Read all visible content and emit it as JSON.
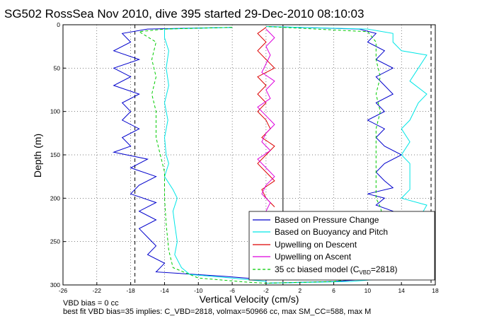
{
  "chart_data": {
    "type": "line",
    "title": "SG502 RossSea Nov 2010, dive 395 started 29-Dec-2010 08:10:03",
    "xlabel": "Vertical Velocity (cm/s)",
    "ylabel": "Depth (m)",
    "xlim": [
      -26,
      18
    ],
    "ylim": [
      0,
      300
    ],
    "y_reversed": true,
    "xticks": [
      "-26",
      "-22",
      "-18",
      "-14",
      "-10",
      "-6",
      "-2",
      "2",
      "6",
      "10",
      "14",
      "18"
    ],
    "xtick_values": [
      -26,
      -22,
      -18,
      -14,
      -10,
      -6,
      -2,
      2,
      6,
      10,
      14,
      18
    ],
    "yticks": [
      "0",
      "50",
      "100",
      "150",
      "200",
      "250",
      "300"
    ],
    "ytick_values": [
      0,
      50,
      100,
      150,
      200,
      250,
      300
    ],
    "grid": "dotted",
    "legend_position": "bottom-right",
    "reference_lines": [
      {
        "x": -17.5,
        "style": "dashed"
      },
      {
        "x": 17.5,
        "style": "dashed"
      },
      {
        "x": 0,
        "style": "solid"
      }
    ],
    "series": [
      {
        "name": "Based on Pressure Change",
        "color": "#0000cc",
        "points": [
          [
            -6,
            3
          ],
          [
            -16,
            5
          ],
          [
            -19,
            10
          ],
          [
            -18,
            20
          ],
          [
            -20,
            30
          ],
          [
            -17,
            40
          ],
          [
            -20,
            50
          ],
          [
            -18,
            60
          ],
          [
            -20,
            70
          ],
          [
            -17,
            80
          ],
          [
            -19,
            90
          ],
          [
            -18,
            100
          ],
          [
            -19,
            110
          ],
          [
            -17,
            120
          ],
          [
            -19,
            130
          ],
          [
            -18,
            140
          ],
          [
            -20,
            147
          ],
          [
            -16,
            155
          ],
          [
            -18,
            165
          ],
          [
            -15,
            175
          ],
          [
            -17,
            185
          ],
          [
            -18,
            195
          ],
          [
            -15,
            205
          ],
          [
            -17,
            215
          ],
          [
            -15,
            225
          ],
          [
            -17,
            235
          ],
          [
            -16,
            245
          ],
          [
            -15,
            255
          ],
          [
            -16,
            265
          ],
          [
            -14,
            275
          ],
          [
            -15,
            285
          ],
          [
            -7,
            290
          ],
          [
            -2,
            294
          ],
          [
            -2,
            298
          ],
          [
            -2,
            298
          ],
          [
            6,
            296
          ],
          [
            12,
            292
          ],
          [
            13,
            285
          ],
          [
            10,
            275
          ],
          [
            12,
            265
          ],
          [
            13,
            255
          ],
          [
            11,
            245
          ],
          [
            12,
            235
          ],
          [
            14,
            225
          ],
          [
            13,
            215
          ],
          [
            11,
            208
          ],
          [
            12,
            200
          ],
          [
            10,
            195
          ],
          [
            13,
            188
          ],
          [
            12,
            180
          ],
          [
            11,
            170
          ],
          [
            12,
            160
          ],
          [
            14,
            150
          ],
          [
            12,
            140
          ],
          [
            11,
            130
          ],
          [
            12,
            120
          ],
          [
            10,
            110
          ],
          [
            12,
            100
          ],
          [
            11,
            90
          ],
          [
            13,
            80
          ],
          [
            12,
            70
          ],
          [
            11,
            60
          ],
          [
            13,
            50
          ],
          [
            11,
            40
          ],
          [
            12,
            30
          ],
          [
            10,
            20
          ],
          [
            11,
            10
          ],
          [
            9,
            5
          ],
          [
            -2,
            2
          ]
        ]
      },
      {
        "name": "Based on Buoyancy and Pitch",
        "color": "#00e6e6",
        "points": [
          [
            -6,
            3
          ],
          [
            -14,
            5
          ],
          [
            -14,
            15
          ],
          [
            -13.5,
            30
          ],
          [
            -13.8,
            50
          ],
          [
            -13.5,
            70
          ],
          [
            -14,
            90
          ],
          [
            -13.6,
            110
          ],
          [
            -14,
            130
          ],
          [
            -13.8,
            150
          ],
          [
            -13.5,
            160
          ],
          [
            -14,
            175
          ],
          [
            -13,
            190
          ],
          [
            -12.5,
            200
          ],
          [
            -13,
            215
          ],
          [
            -12.8,
            230
          ],
          [
            -12.5,
            250
          ],
          [
            -12.8,
            265
          ],
          [
            -12,
            280
          ],
          [
            -11,
            288
          ],
          [
            -6,
            292
          ],
          [
            -2,
            296
          ],
          [
            -2,
            298
          ],
          [
            8,
            296
          ],
          [
            13,
            292
          ],
          [
            14,
            285
          ],
          [
            15,
            270
          ],
          [
            14,
            255
          ],
          [
            15,
            240
          ],
          [
            16,
            225
          ],
          [
            17,
            208
          ],
          [
            14,
            200
          ],
          [
            15,
            190
          ],
          [
            15,
            175
          ],
          [
            15,
            160
          ],
          [
            14,
            150
          ],
          [
            15,
            135
          ],
          [
            14,
            120
          ],
          [
            15,
            110
          ],
          [
            16,
            90
          ],
          [
            17,
            80
          ],
          [
            15,
            65
          ],
          [
            16,
            50
          ],
          [
            17,
            35
          ],
          [
            14,
            30
          ],
          [
            13,
            20
          ],
          [
            13,
            10
          ],
          [
            10,
            5
          ],
          [
            -2,
            2
          ]
        ]
      },
      {
        "name": "Upwelling on Descent",
        "color": "#dd0000",
        "points": [
          [
            -2,
            3
          ],
          [
            -3,
            10
          ],
          [
            -2,
            20
          ],
          [
            -3,
            30
          ],
          [
            -2,
            40
          ],
          [
            -1,
            50
          ],
          [
            -3,
            60
          ],
          [
            -2,
            70
          ],
          [
            -3,
            80
          ],
          [
            -2,
            90
          ],
          [
            -3,
            100
          ],
          [
            -2,
            110
          ],
          [
            -1.5,
            120
          ],
          [
            -2.5,
            130
          ],
          [
            -1,
            140
          ],
          [
            -2,
            150
          ],
          [
            -3,
            160
          ],
          [
            -2,
            170
          ],
          [
            -1,
            180
          ],
          [
            -2.5,
            190
          ],
          [
            -2,
            200
          ],
          [
            -1,
            210
          ]
        ]
      },
      {
        "name": "Upwelling on Ascent",
        "color": "#dd00dd",
        "points": [
          [
            -2,
            215
          ],
          [
            -1.5,
            205
          ],
          [
            -2.5,
            195
          ],
          [
            -2,
            185
          ],
          [
            -1,
            175
          ],
          [
            -2,
            165
          ],
          [
            -3,
            155
          ],
          [
            -1.5,
            145
          ],
          [
            -2.5,
            135
          ],
          [
            -2,
            125
          ],
          [
            -1,
            115
          ],
          [
            -2,
            105
          ],
          [
            -3,
            95
          ],
          [
            -1.5,
            85
          ],
          [
            -2,
            75
          ],
          [
            -1,
            65
          ],
          [
            -2.5,
            55
          ],
          [
            -2,
            45
          ],
          [
            -1.5,
            35
          ],
          [
            -2,
            25
          ],
          [
            -1,
            15
          ],
          [
            -2,
            5
          ]
        ]
      },
      {
        "name": "35 cc biased model (C_VBD=2818)",
        "color": "#00cc00",
        "style": "dashed",
        "points": [
          [
            -6,
            3
          ],
          [
            -14,
            5
          ],
          [
            -17,
            8
          ],
          [
            -15,
            20
          ],
          [
            -15.5,
            40
          ],
          [
            -15,
            60
          ],
          [
            -15.5,
            80
          ],
          [
            -15,
            100
          ],
          [
            -15,
            130
          ],
          [
            -14.5,
            150
          ],
          [
            -14,
            170
          ],
          [
            -14,
            200
          ],
          [
            -13.8,
            230
          ],
          [
            -13.5,
            260
          ],
          [
            -13,
            280
          ],
          [
            -10,
            292
          ],
          [
            -4,
            297
          ],
          [
            -2,
            298
          ],
          [
            6,
            296
          ],
          [
            11,
            290
          ],
          [
            11,
            270
          ],
          [
            11.5,
            250
          ],
          [
            12,
            230
          ],
          [
            11.5,
            210
          ],
          [
            11,
            200
          ],
          [
            11,
            170
          ],
          [
            11,
            150
          ],
          [
            11,
            120
          ],
          [
            11.5,
            100
          ],
          [
            11,
            80
          ],
          [
            11.5,
            60
          ],
          [
            11,
            40
          ],
          [
            11,
            20
          ],
          [
            10,
            8
          ],
          [
            -2,
            2
          ]
        ]
      }
    ],
    "legend_labels": {
      "pressure": "Based on Pressure Change",
      "buoyancy": "Based on Buoyancy and Pitch",
      "descent": "Upwelling on Descent",
      "ascent": "Upwelling on Ascent",
      "model_prefix": "35 cc biased model (C",
      "model_sub": "VBD",
      "model_suffix": "=2818)"
    },
    "annotations": [
      "VBD bias = 0 cc",
      "best fit VBD bias=35 implies: C_VBD=2818, volmax=50966 cc, max SM_CC=588, max M"
    ]
  }
}
